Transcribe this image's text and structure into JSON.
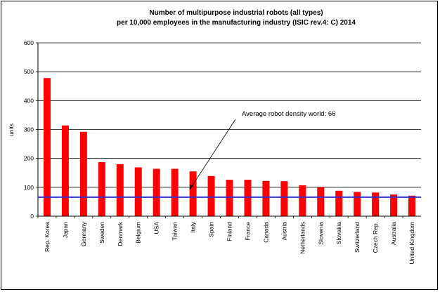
{
  "chart_data": {
    "type": "bar",
    "title_lines": [
      "Number of multipurpose industrial robots (all types)",
      "per 10,000 employees in the manufacturing industry (ISIC rev.4: C) 2014"
    ],
    "xlabel": "",
    "ylabel": "units",
    "ylim": [
      0,
      600
    ],
    "yticks": [
      0,
      100,
      200,
      300,
      400,
      500,
      600
    ],
    "grid": true,
    "categories": [
      "Rep. Korea",
      "Japan",
      "Germany",
      "Sweden",
      "Denmark",
      "Belgium",
      "USA",
      "Taiwan",
      "Italy",
      "Spain",
      "Finland",
      "France",
      "Canada",
      "Austria",
      "Netherlands",
      "Slovenia",
      "Slovakia",
      "Switzerland",
      "Czech Rep.",
      "Australia",
      "United Kingdom"
    ],
    "values": [
      478,
      314,
      292,
      187,
      180,
      169,
      164,
      164,
      155,
      139,
      126,
      126,
      122,
      121,
      107,
      100,
      88,
      84,
      82,
      75,
      71
    ],
    "bar_color": "#ff0000",
    "reference_line": {
      "value": 66,
      "color": "#3333cc"
    },
    "annotation": {
      "text": "Average robot density world: 66"
    }
  }
}
